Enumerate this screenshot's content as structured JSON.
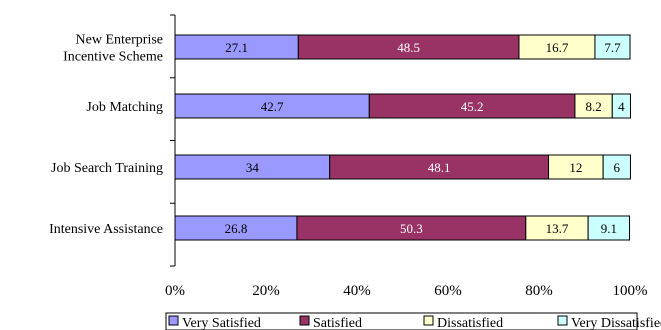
{
  "chart_data": {
    "type": "bar",
    "orientation": "horizontal",
    "stacked": true,
    "percent_stacked": true,
    "categories": [
      "New Enterprise Incentive Scheme",
      "Job Matching",
      "Job Search Training",
      "Intensive Assistance"
    ],
    "category_lines": [
      [
        "New Enterprise",
        "Incentive Scheme"
      ],
      [
        "Job Matching"
      ],
      [
        "Job Search Training"
      ],
      [
        "Intensive Assistance"
      ]
    ],
    "series": [
      {
        "name": "Very Satisfied",
        "color": "#9999ff",
        "label_color": "#000000",
        "values": [
          27.1,
          42.7,
          34,
          26.8
        ]
      },
      {
        "name": "Satisfied",
        "color": "#993366",
        "label_color": "#ffffff",
        "values": [
          48.5,
          45.2,
          48.1,
          50.3
        ]
      },
      {
        "name": "Dissatisfied",
        "color": "#ffffcc",
        "label_color": "#000000",
        "values": [
          16.7,
          8.2,
          12,
          13.7
        ]
      },
      {
        "name": "Very Dissatisfied",
        "color": "#ccffff",
        "label_color": "#000000",
        "values": [
          7.7,
          4,
          6,
          9.1
        ]
      }
    ],
    "xlim": [
      0,
      100
    ],
    "x_ticks": [
      "0%",
      "20%",
      "40%",
      "60%",
      "80%",
      "100%"
    ],
    "legend_position": "bottom",
    "grid": false
  }
}
